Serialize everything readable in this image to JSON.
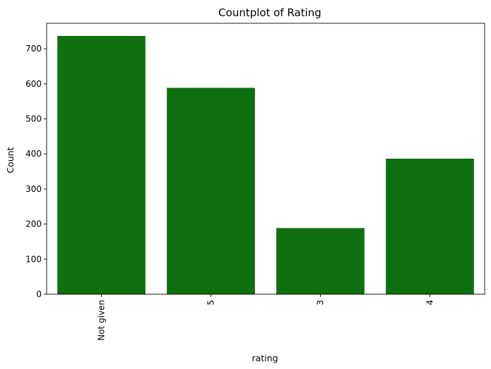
{
  "chart_data": {
    "type": "bar",
    "title": "Countplot of Rating",
    "xlabel": "rating",
    "ylabel": "Count",
    "categories": [
      "Not given",
      "5",
      "3",
      "4"
    ],
    "values": [
      736,
      588,
      188,
      386
    ],
    "ylim": [
      0,
      772.8
    ],
    "yticks": [
      0,
      100,
      200,
      300,
      400,
      500,
      600,
      700
    ],
    "grid": false,
    "colors": {
      "bar": "#0f700f",
      "bar_edge": "#0c550c"
    }
  }
}
